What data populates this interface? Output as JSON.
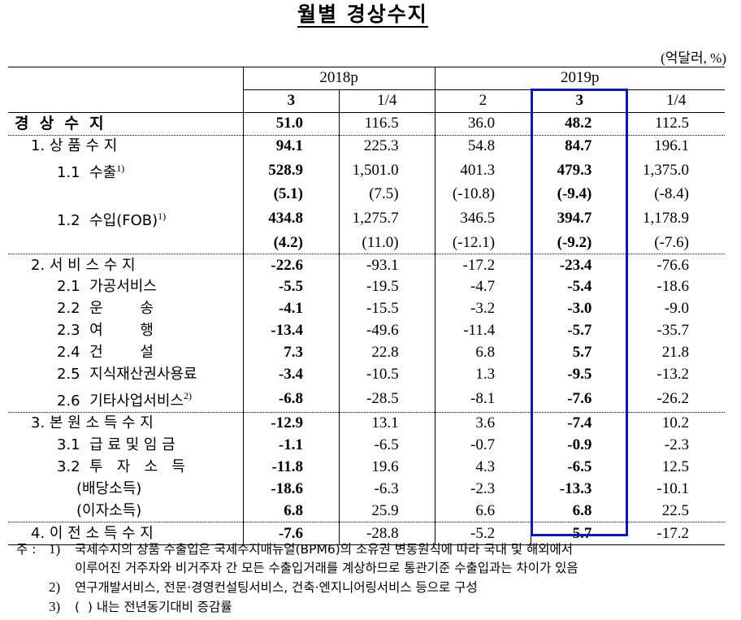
{
  "title": "월별 경상수지",
  "unit": "(억달러, %)",
  "header": {
    "years": [
      {
        "label": "2018p",
        "span": 2
      },
      {
        "label": "2019p",
        "span": 3
      }
    ],
    "quarters": [
      "3",
      "1/4",
      "2",
      "3",
      "1/4"
    ]
  },
  "highlight": {
    "column_index": 3,
    "color": "#0a14c8"
  },
  "rows": [
    {
      "label": "경  상  수  지",
      "indent": 0,
      "label_bold": true,
      "values": [
        "51.0",
        "116.5",
        "36.0",
        "48.2",
        "112.5"
      ]
    },
    {
      "label": "1. 상 품 수 지",
      "indent": 1,
      "values": [
        "94.1",
        "225.3",
        "54.8",
        "84.7",
        "196.1"
      ]
    },
    {
      "label": "1.1  수출",
      "sup": "1)",
      "indent": 2,
      "values": [
        "528.9",
        "1,501.0",
        "401.3",
        "479.3",
        "1,375.0"
      ]
    },
    {
      "label": "",
      "indent": 2,
      "values": [
        "(5.1)",
        "(7.5)",
        "(-10.8)",
        "(-9.4)",
        "(-8.4)"
      ]
    },
    {
      "label": "1.2  수입(FOB)",
      "sup": "1)",
      "indent": 2,
      "values": [
        "434.8",
        "1,275.7",
        "346.5",
        "394.7",
        "1,178.9"
      ]
    },
    {
      "label": "",
      "indent": 2,
      "values": [
        "(4.2)",
        "(11.0)",
        "(-12.1)",
        "(-9.2)",
        "(-7.6)"
      ]
    },
    {
      "label": "2. 서 비 스 수 지",
      "indent": 1,
      "values": [
        "-22.6",
        "-93.1",
        "-17.2",
        "-23.4",
        "-76.6"
      ]
    },
    {
      "label": "2.1  가공서비스",
      "indent": 2,
      "values": [
        "-5.5",
        "-19.5",
        "-4.7",
        "-5.4",
        "-18.6"
      ]
    },
    {
      "label": "2.2  운        송",
      "indent": 2,
      "values": [
        "-4.1",
        "-15.5",
        "-3.2",
        "-3.0",
        "-9.0"
      ]
    },
    {
      "label": "2.3  여        행",
      "indent": 2,
      "values": [
        "-13.4",
        "-49.6",
        "-11.4",
        "-5.7",
        "-35.7"
      ]
    },
    {
      "label": "2.4  건        설",
      "indent": 2,
      "values": [
        "7.3",
        "22.8",
        "6.8",
        "5.7",
        "21.8"
      ]
    },
    {
      "label": "2.5  지식재산권사용료",
      "indent": 2,
      "values": [
        "-3.4",
        "-10.5",
        "1.3",
        "-9.5",
        "-13.2"
      ]
    },
    {
      "label": "2.6  기타사업서비스",
      "sup": "2)",
      "indent": 2,
      "values": [
        "-6.8",
        "-28.5",
        "-8.1",
        "-7.6",
        "-26.2"
      ]
    },
    {
      "label": "3. 본 원 소 득 수 지",
      "indent": 1,
      "values": [
        "-12.9",
        "13.1",
        "3.6",
        "-7.4",
        "10.2"
      ]
    },
    {
      "label": "3.1  급 료 및 임 금",
      "indent": 2,
      "values": [
        "-1.1",
        "-6.5",
        "-0.7",
        "-0.9",
        "-2.3"
      ]
    },
    {
      "label": "3.2  투   자   소   득",
      "indent": 2,
      "values": [
        "-11.8",
        "19.6",
        "4.3",
        "-6.5",
        "12.5"
      ]
    },
    {
      "label": "(배당소득)",
      "indent": 3,
      "values": [
        "-18.6",
        "-6.3",
        "-2.3",
        "-13.3",
        "-10.1"
      ]
    },
    {
      "label": "(이자소득)",
      "indent": 3,
      "values": [
        "6.8",
        "25.9",
        "6.6",
        "6.8",
        "22.5"
      ]
    },
    {
      "label": "4. 이 전 소 득 수 지",
      "indent": 1,
      "values": [
        "-7.6",
        "-28.8",
        "-5.2",
        "-5.7",
        "-17.2"
      ]
    }
  ],
  "notes": {
    "prefix": "주 :",
    "items": [
      {
        "num": "1)",
        "lines": [
          "국제수지의 상품 수출입은 국제수지매뉴얼(BPM6)의 소유권 변동원칙에 따라 국내 및 해외에서",
          "이루어진 거주자와 비거주자 간 모든 수출입거래를 계상하므로 통관기준 수출입과는 차이가 있음"
        ]
      },
      {
        "num": "2)",
        "lines": [
          "연구개발서비스, 전문·경영컨설팅서비스, 건축·엔지니어링서비스 등으로 구성"
        ]
      },
      {
        "num": "3)",
        "lines": [
          "(  ) 내는 전년동기대비 증감률"
        ]
      }
    ]
  }
}
